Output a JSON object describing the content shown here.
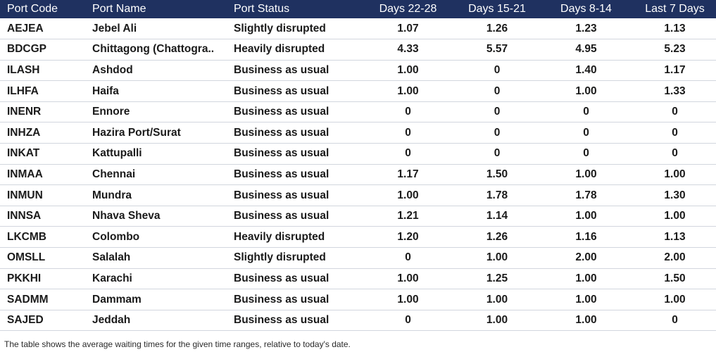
{
  "table": {
    "headers": [
      "Port Code",
      "Port Name",
      "Port Status",
      "Days 22-28",
      "Days 15-21",
      "Days 8-14",
      "Last 7 Days"
    ],
    "rows": [
      [
        "AEJEA",
        "Jebel Ali",
        "Slightly disrupted",
        "1.07",
        "1.26",
        "1.23",
        "1.13"
      ],
      [
        "BDCGP",
        "Chittagong (Chattogra..",
        "Heavily disrupted",
        "4.33",
        "5.57",
        "4.95",
        "5.23"
      ],
      [
        "ILASH",
        "Ashdod",
        "Business as usual",
        "1.00",
        "0",
        "1.40",
        "1.17"
      ],
      [
        "ILHFA",
        "Haifa",
        "Business as usual",
        "1.00",
        "0",
        "1.00",
        "1.33"
      ],
      [
        "INENR",
        "Ennore",
        "Business as usual",
        "0",
        "0",
        "0",
        "0"
      ],
      [
        "INHZA",
        "Hazira Port/Surat",
        "Business as usual",
        "0",
        "0",
        "0",
        "0"
      ],
      [
        "INKAT",
        "Kattupalli",
        "Business as usual",
        "0",
        "0",
        "0",
        "0"
      ],
      [
        "INMAA",
        "Chennai",
        "Business as usual",
        "1.17",
        "1.50",
        "1.00",
        "1.00"
      ],
      [
        "INMUN",
        "Mundra",
        "Business as usual",
        "1.00",
        "1.78",
        "1.78",
        "1.30"
      ],
      [
        "INNSA",
        "Nhava Sheva",
        "Business as usual",
        "1.21",
        "1.14",
        "1.00",
        "1.00"
      ],
      [
        "LKCMB",
        "Colombo",
        "Heavily disrupted",
        "1.20",
        "1.26",
        "1.16",
        "1.13"
      ],
      [
        "OMSLL",
        "Salalah",
        "Slightly disrupted",
        "0",
        "1.00",
        "2.00",
        "2.00"
      ],
      [
        "PKKHI",
        "Karachi",
        "Business as usual",
        "1.00",
        "1.25",
        "1.00",
        "1.50"
      ],
      [
        "SADMM",
        "Dammam",
        "Business as usual",
        "1.00",
        "1.00",
        "1.00",
        "1.00"
      ],
      [
        "SAJED",
        "Jeddah",
        "Business as usual",
        "0",
        "1.00",
        "1.00",
        "0"
      ]
    ]
  },
  "footnote": "The table shows the average waiting times for the given time ranges, relative to today's date.",
  "colors": {
    "header_bg": "#1f3160",
    "header_text": "#ffffff",
    "row_divider": "#d2d6de"
  }
}
